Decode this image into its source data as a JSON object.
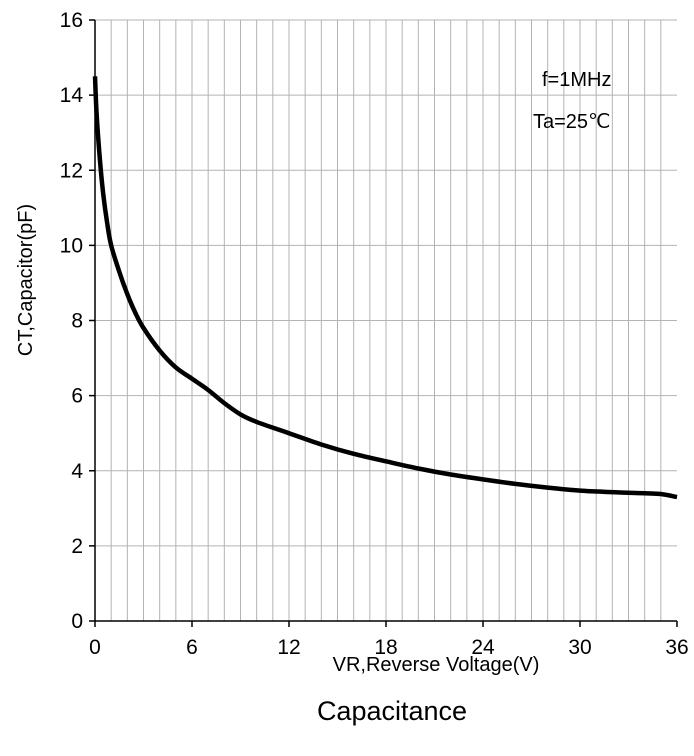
{
  "chart_data": {
    "type": "line",
    "title": "Capacitance",
    "xlabel": "VR,Reverse Voltage(V)",
    "ylabel": "CT,Capacitor(pF)",
    "xlim": [
      0,
      36
    ],
    "ylim": [
      0,
      16
    ],
    "x_ticks": [
      0,
      6,
      12,
      18,
      24,
      30,
      36
    ],
    "y_ticks": [
      0,
      2,
      4,
      6,
      8,
      10,
      12,
      14,
      16
    ],
    "x_minor_step": 1,
    "y_major_step": 2,
    "grid": true,
    "annotations": [
      "f=1MHz",
      "Ta=25℃"
    ],
    "series": [
      {
        "color": "#000000",
        "x": [
          0,
          0.1,
          0.3,
          0.5,
          0.75,
          1,
          1.5,
          2,
          2.5,
          3,
          4,
          5,
          6,
          7,
          8,
          9,
          10,
          12,
          14,
          16,
          18,
          20,
          22,
          24,
          26,
          28,
          30,
          32,
          34,
          35,
          36
        ],
        "y": [
          14.5,
          13.5,
          12.3,
          11.4,
          10.6,
          10.0,
          9.3,
          8.7,
          8.2,
          7.8,
          7.2,
          6.75,
          6.45,
          6.15,
          5.8,
          5.5,
          5.3,
          5.0,
          4.7,
          4.45,
          4.25,
          4.06,
          3.9,
          3.77,
          3.65,
          3.55,
          3.47,
          3.43,
          3.4,
          3.38,
          3.3
        ]
      }
    ]
  }
}
